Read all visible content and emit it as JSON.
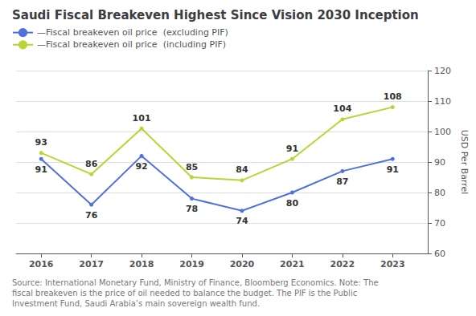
{
  "chart_data": {
    "type": "line",
    "title": "Saudi Fiscal Breakeven Highest Since Vision 2030 Inception",
    "x": [
      2016,
      2017,
      2018,
      2019,
      2020,
      2021,
      2022,
      2023
    ],
    "series": [
      {
        "name": "—Fiscal breakeven oil price  (excluding PIF)",
        "values": [
          91,
          76,
          92,
          78,
          74,
          80,
          87,
          91
        ]
      },
      {
        "name": "—Fiscal breakeven oil price  (including PIF)",
        "values": [
          93,
          86,
          101,
          85,
          84,
          91,
          104,
          108
        ]
      }
    ],
    "xlim": [
      2015.5,
      2023.7
    ],
    "xticks": [
      2016,
      2017,
      2018,
      2019,
      2020,
      2021,
      2022,
      2023
    ],
    "ylim": [
      60,
      120
    ],
    "yticks": [
      60,
      70,
      80,
      90,
      100,
      110,
      120
    ],
    "ylabel": "USD Per Barrel",
    "source": "Source: International Monetary Fund, Ministry of Finance, Bloomberg Economics. Note: The\nfiscal breakeven is the price of oil needed to balance the budget. The PIF is the Public\nInvestment Fund, Saudi Arabia’s main sovereign wealth fund.",
    "grid": true,
    "legend": "upper left",
    "data_labels": true
  }
}
